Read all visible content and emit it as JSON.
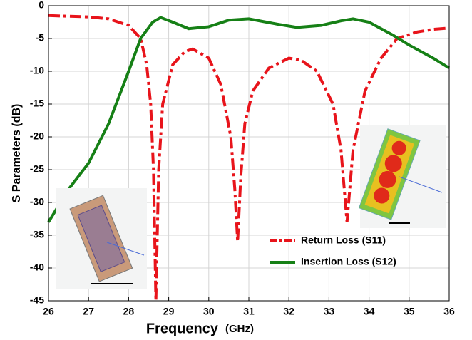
{
  "chart_data": {
    "type": "line",
    "xlabel": "Frequency",
    "xlabel_unit": "(GHz)",
    "ylabel": "S Parameters (dB)",
    "xlim": [
      26,
      36
    ],
    "xticks": [
      26,
      27,
      28,
      29,
      30,
      31,
      32,
      33,
      34,
      35,
      36
    ],
    "ylim": [
      -45,
      0
    ],
    "yticks": [
      0,
      -5,
      -10,
      -15,
      -20,
      -25,
      -30,
      -35,
      -40,
      -45
    ],
    "grid": true,
    "legend": "lower right",
    "series": [
      {
        "name": "Return Loss (S11)",
        "color": "#e8141b",
        "dash": "dashdot",
        "x": [
          26,
          27,
          27.5,
          28,
          28.3,
          28.45,
          28.55,
          28.62,
          28.68,
          28.75,
          28.85,
          29.1,
          29.4,
          29.6,
          30,
          30.3,
          30.55,
          30.65,
          30.72,
          30.8,
          30.9,
          31.1,
          31.5,
          32,
          32.3,
          32.7,
          33.1,
          33.3,
          33.45,
          33.6,
          33.9,
          34.3,
          34.7,
          35.2,
          35.6,
          36
        ],
        "values": [
          -1.5,
          -1.7,
          -2,
          -3,
          -5,
          -9,
          -15,
          -25,
          -45,
          -25,
          -15,
          -9,
          -7,
          -6.6,
          -8,
          -12,
          -20,
          -28,
          -36,
          -26,
          -18,
          -13,
          -9.5,
          -8,
          -8.3,
          -10,
          -15,
          -22,
          -33,
          -22,
          -13,
          -8,
          -5,
          -4,
          -3.6,
          -3.4
        ]
      },
      {
        "name": "Insertion Loss (S12)",
        "color": "#168016",
        "dash": "solid",
        "x": [
          26,
          26.5,
          27,
          27.5,
          28,
          28.3,
          28.6,
          28.8,
          29.1,
          29.5,
          30,
          30.5,
          31,
          31.7,
          32.2,
          32.8,
          33.3,
          33.6,
          34,
          34.6,
          35,
          35.6,
          36
        ],
        "values": [
          -33,
          -28,
          -24,
          -18,
          -10,
          -5,
          -2.5,
          -1.8,
          -2.5,
          -3.5,
          -3.2,
          -2.2,
          -2,
          -2.8,
          -3.3,
          -3,
          -2.3,
          -2,
          -2.5,
          -4.5,
          -6,
          -8,
          -9.5
        ]
      }
    ]
  }
}
